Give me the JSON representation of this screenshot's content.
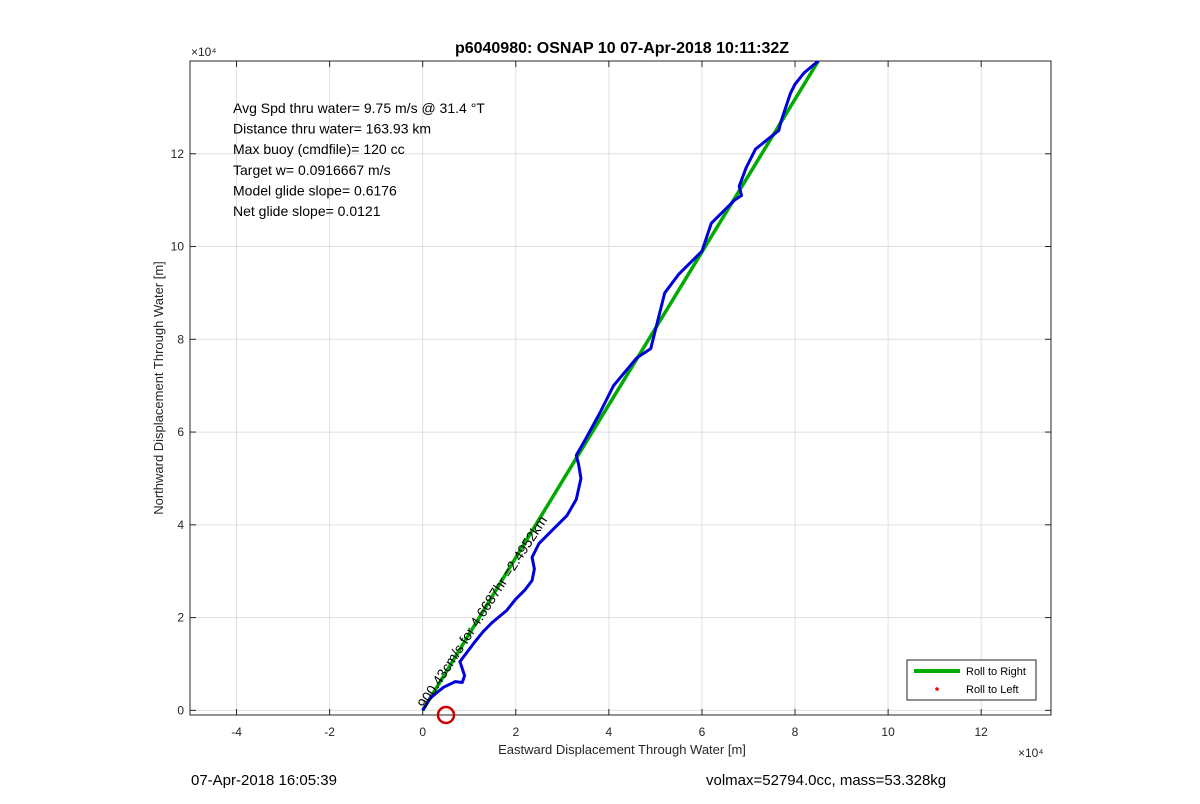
{
  "chart_data": {
    "type": "line",
    "title": "p6040980: OSNAP 10 07-Apr-2018 10:11:32Z",
    "xlabel": "Eastward Displacement Through Water [m]",
    "ylabel": "Northward Displacement Through Water [m]",
    "xlim": [
      -50000,
      135000
    ],
    "ylim": [
      -1000,
      140000
    ],
    "x_ticks": [
      -40000,
      -20000,
      0,
      20000,
      40000,
      60000,
      80000,
      100000,
      120000
    ],
    "x_tick_labels": [
      "-4",
      "-2",
      "0",
      "2",
      "4",
      "6",
      "8",
      "10",
      "12"
    ],
    "y_ticks": [
      0,
      20000,
      40000,
      60000,
      80000,
      100000,
      120000
    ],
    "y_tick_labels": [
      "0",
      "2",
      "4",
      "6",
      "8",
      "10",
      "12"
    ],
    "x_exponent_label": "×10⁴",
    "y_exponent_label": "×10⁴",
    "grid": true,
    "legend_position": "bottom-right",
    "annotations": [
      "Avg Spd thru water=  9.75 m/s @  31.4 °T",
      "Distance thru water= 163.93 km",
      "Max buoy (cmdfile)= 120 cc",
      "Target w= 0.0916667 m/s",
      "Model glide slope= 0.6176",
      "Net glide slope= 0.0121"
    ],
    "segment_label": "900.43cm/s for 4.6687hr =2.4952km",
    "series": [
      {
        "name": "Roll to Right",
        "color": "#00aa00",
        "x": [
          0,
          85000
        ],
        "y": [
          0,
          140000
        ]
      },
      {
        "name": "Roll to Left",
        "color": "#ff0000",
        "marker_only": true,
        "x": [],
        "y": []
      },
      {
        "color": "#0000dd",
        "x": [
          0,
          600,
          1500,
          3000,
          4500,
          7000,
          8500,
          9000,
          8000,
          9500,
          11000,
          13000,
          15000,
          18000,
          20000,
          22000,
          23500,
          24000,
          23500,
          25000,
          28000,
          31000,
          33000,
          34000,
          33500,
          33000,
          35000,
          38000,
          41000,
          46000,
          49000,
          50000,
          51000,
          52000,
          55000,
          60000,
          61000,
          62000,
          64000,
          67000,
          68500,
          68000,
          69500,
          71500,
          74000,
          76500,
          77000,
          78000,
          79000,
          80000,
          82000,
          85000
        ],
        "y": [
          0,
          1000,
          2500,
          3800,
          5000,
          6200,
          6000,
          7500,
          10500,
          12500,
          14500,
          17000,
          19000,
          21500,
          24000,
          26000,
          28000,
          30500,
          33000,
          36000,
          39000,
          42000,
          45500,
          50000,
          53000,
          55000,
          58500,
          64000,
          70000,
          76000,
          78000,
          82000,
          86000,
          90000,
          94000,
          99000,
          102000,
          105000,
          107000,
          110000,
          111000,
          113000,
          117000,
          121000,
          123000,
          125000,
          127000,
          130000,
          133000,
          135000,
          137500,
          140000
        ]
      },
      {
        "color": "#cc0000",
        "marker": "circle",
        "x": [
          5000
        ],
        "y": [
          -1000
        ]
      }
    ],
    "legend": [
      {
        "name": "Roll to Right",
        "style": "line",
        "color": "#00aa00"
      },
      {
        "name": "Roll to Left",
        "style": "dot",
        "color": "#ff0000"
      }
    ]
  },
  "footer": {
    "left": "07-Apr-2018 16:05:39",
    "right": "volmax=52794.0cc, mass=53.328kg"
  }
}
